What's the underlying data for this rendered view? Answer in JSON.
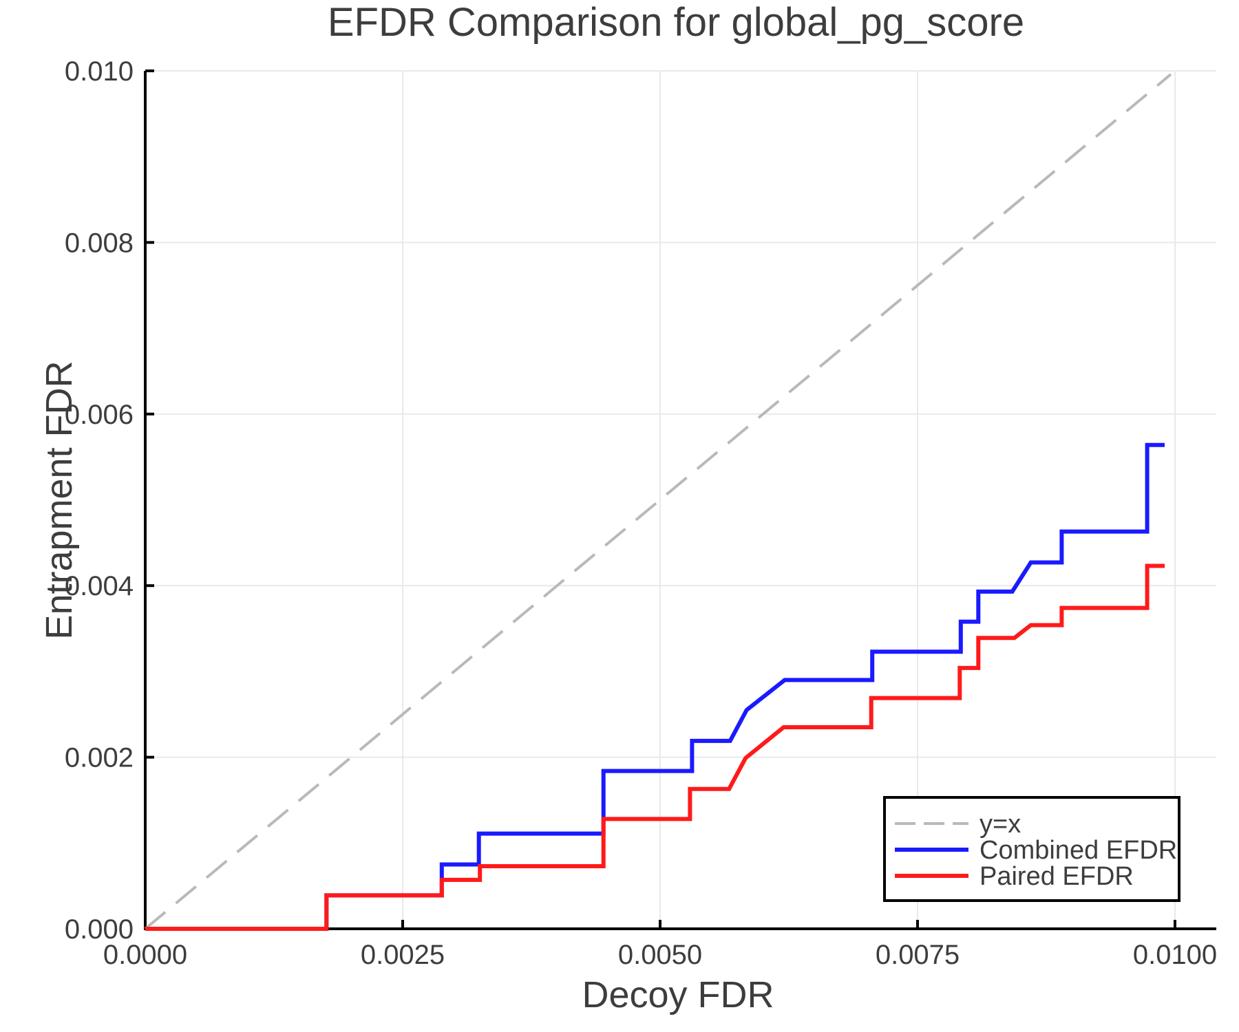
{
  "chart_data": {
    "type": "line",
    "subtype": "step-efdr-comparison",
    "title": "EFDR Comparison for global_pg_score",
    "xlabel": "Decoy FDR",
    "ylabel": "Entrapment FDR",
    "xlim": [
      0,
      0.0104
    ],
    "ylim": [
      0,
      0.01
    ],
    "grid": true,
    "x_ticks": {
      "values": [
        0,
        0.0025,
        0.005,
        0.0075,
        0.01
      ],
      "labels": [
        "0.0000",
        "0.0025",
        "0.0050",
        "0.0075",
        "0.0100"
      ]
    },
    "y_ticks": {
      "values": [
        0,
        0.002,
        0.004,
        0.006,
        0.008,
        0.01
      ],
      "labels": [
        "0.000",
        "0.002",
        "0.004",
        "0.006",
        "0.008",
        "0.010"
      ]
    },
    "reference_line": {
      "name": "y=x",
      "color": "#b9b9b9",
      "dashed": true,
      "points": [
        [
          0,
          0
        ],
        [
          0.00996,
          0.00996
        ]
      ]
    },
    "series": [
      {
        "name": "Combined EFDR",
        "color": "#1a1aff",
        "points": [
          [
            0,
            0
          ],
          [
            0.00176,
            0
          ],
          [
            0.00176,
            0.00039
          ],
          [
            0.00288,
            0.00039
          ],
          [
            0.00288,
            0.00075
          ],
          [
            0.00324,
            0.00075
          ],
          [
            0.00324,
            0.00111
          ],
          [
            0.00445,
            0.00111
          ],
          [
            0.00445,
            0.00184
          ],
          [
            0.00531,
            0.00184
          ],
          [
            0.00531,
            0.00219
          ],
          [
            0.00568,
            0.00219
          ],
          [
            0.00584,
            0.00255
          ],
          [
            0.00621,
            0.0029
          ],
          [
            0.00706,
            0.0029
          ],
          [
            0.00706,
            0.00323
          ],
          [
            0.00792,
            0.00323
          ],
          [
            0.00792,
            0.00358
          ],
          [
            0.00809,
            0.00358
          ],
          [
            0.00809,
            0.00393
          ],
          [
            0.00842,
            0.00393
          ],
          [
            0.0086,
            0.00427
          ],
          [
            0.0089,
            0.00427
          ],
          [
            0.0089,
            0.00463
          ],
          [
            0.00973,
            0.00463
          ],
          [
            0.00973,
            0.00564
          ],
          [
            0.0099,
            0.00564
          ]
        ]
      },
      {
        "name": "Paired EFDR",
        "color": "#ff1a1a",
        "points": [
          [
            0,
            0
          ],
          [
            0.00176,
            0
          ],
          [
            0.00176,
            0.00039
          ],
          [
            0.00288,
            0.00039
          ],
          [
            0.00288,
            0.00057
          ],
          [
            0.00325,
            0.00057
          ],
          [
            0.00325,
            0.00073
          ],
          [
            0.00445,
            0.00073
          ],
          [
            0.00445,
            0.00128
          ],
          [
            0.00529,
            0.00128
          ],
          [
            0.00529,
            0.00163
          ],
          [
            0.00567,
            0.00163
          ],
          [
            0.00583,
            0.00199
          ],
          [
            0.0062,
            0.00235
          ],
          [
            0.00705,
            0.00235
          ],
          [
            0.00705,
            0.00269
          ],
          [
            0.00791,
            0.00269
          ],
          [
            0.00791,
            0.00304
          ],
          [
            0.00809,
            0.00304
          ],
          [
            0.00809,
            0.00339
          ],
          [
            0.00844,
            0.00339
          ],
          [
            0.0086,
            0.00354
          ],
          [
            0.0089,
            0.00354
          ],
          [
            0.0089,
            0.00374
          ],
          [
            0.00973,
            0.00374
          ],
          [
            0.00973,
            0.00423
          ],
          [
            0.0099,
            0.00423
          ]
        ]
      }
    ],
    "legend": {
      "position": "lower right",
      "items": [
        {
          "label": "y=x",
          "color": "#b9b9b9",
          "dashed": true
        },
        {
          "label": "Combined EFDR",
          "color": "#1a1aff",
          "dashed": false
        },
        {
          "label": "Paired EFDR",
          "color": "#ff1a1a",
          "dashed": false
        }
      ]
    },
    "colors": {
      "grid": "#e9e9e9",
      "spine": "#000000",
      "text": "#3d3d3d",
      "background": "#ffffff"
    }
  }
}
